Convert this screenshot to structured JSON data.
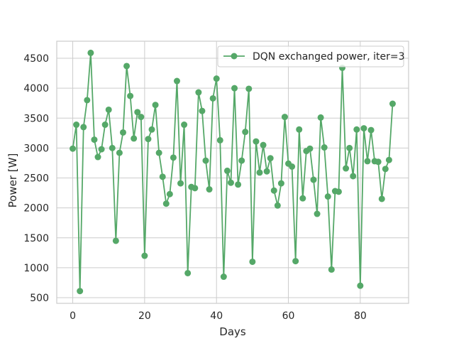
{
  "chart_data": {
    "type": "line",
    "title": "",
    "xlabel": "Days",
    "ylabel": "Power [W]",
    "xlim": [
      -4.45,
      93.45
    ],
    "ylim": [
      405,
      4785
    ],
    "xticks": [
      0,
      20,
      40,
      60,
      80
    ],
    "yticks": [
      500,
      1000,
      1500,
      2000,
      2500,
      3000,
      3500,
      4000,
      4500
    ],
    "grid": true,
    "legend_position": "upper right",
    "series": [
      {
        "name": "DQN exchanged power, iter=3",
        "color": "#55a868",
        "marker": "circle",
        "x": [
          0,
          1,
          2,
          3,
          4,
          5,
          6,
          7,
          8,
          9,
          10,
          11,
          12,
          13,
          14,
          15,
          16,
          17,
          18,
          19,
          20,
          21,
          22,
          23,
          24,
          25,
          26,
          27,
          28,
          29,
          30,
          31,
          32,
          33,
          34,
          35,
          36,
          37,
          38,
          39,
          40,
          41,
          42,
          43,
          44,
          45,
          46,
          47,
          48,
          49,
          50,
          51,
          52,
          53,
          54,
          55,
          56,
          57,
          58,
          59,
          60,
          61,
          62,
          63,
          64,
          65,
          66,
          67,
          68,
          69,
          70,
          71,
          72,
          73,
          74,
          75,
          76,
          77,
          78,
          79,
          80,
          81,
          82,
          83,
          84,
          85,
          86,
          87,
          88,
          89
        ],
        "y": [
          2990,
          3390,
          610,
          3350,
          3800,
          4590,
          3140,
          2850,
          2980,
          3390,
          3640,
          3000,
          1450,
          2920,
          3260,
          4370,
          3870,
          3160,
          3600,
          3520,
          1200,
          3150,
          3310,
          3720,
          2920,
          2520,
          2070,
          2230,
          2840,
          4120,
          2410,
          3390,
          910,
          2350,
          2330,
          3930,
          3620,
          2790,
          2310,
          3830,
          4160,
          3130,
          850,
          2620,
          2420,
          4000,
          2390,
          2790,
          3270,
          3990,
          1100,
          3110,
          2590,
          3050,
          2610,
          2830,
          2290,
          2040,
          2410,
          3520,
          2740,
          2690,
          1110,
          3310,
          2160,
          2950,
          2990,
          2470,
          1900,
          3510,
          3010,
          2190,
          970,
          2280,
          2270,
          4340,
          2660,
          3000,
          2530,
          3310,
          700,
          3330,
          2780,
          3300,
          2780,
          2770,
          2150,
          2650,
          2800,
          3740
        ]
      }
    ]
  }
}
